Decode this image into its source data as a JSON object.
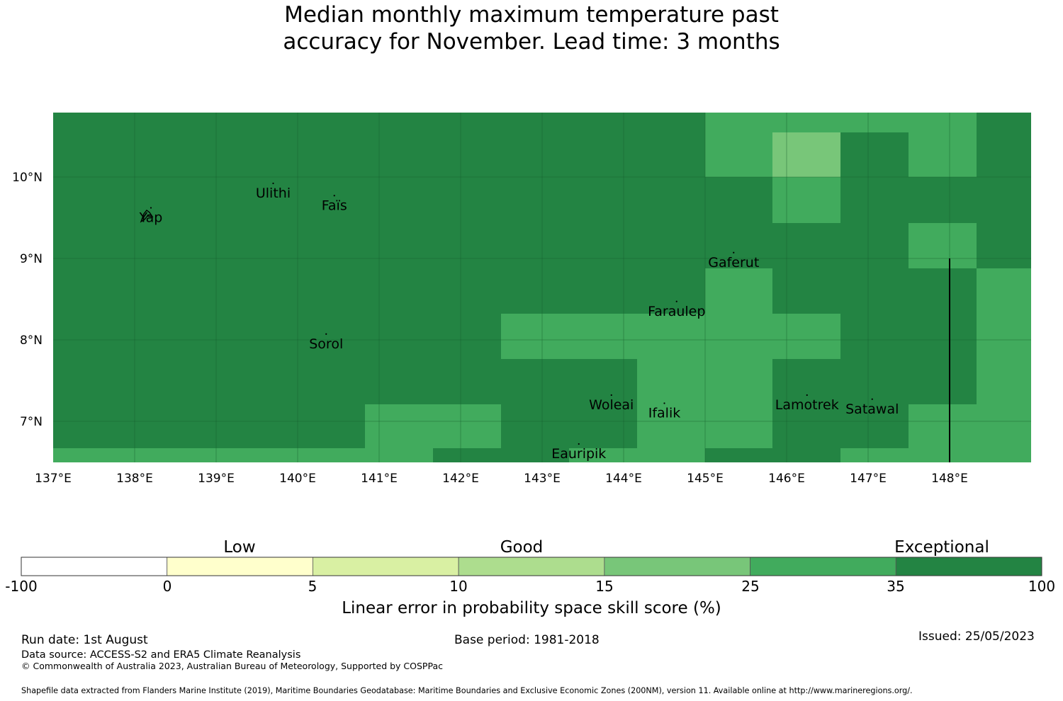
{
  "title_lines": [
    "Median monthly maximum temperature past",
    "accuracy for November. Lead time: 3 months"
  ],
  "map": {
    "lon_ticks": [
      "137°E",
      "138°E",
      "139°E",
      "140°E",
      "141°E",
      "142°E",
      "143°E",
      "144°E",
      "145°E",
      "146°E",
      "147°E",
      "148°E"
    ],
    "lat_ticks": [
      "10°N",
      "9°N",
      "8°N",
      "7°N"
    ],
    "places": [
      {
        "name": "Yap",
        "lon": 138.2,
        "lat": 9.5
      },
      {
        "name": "Ulithi",
        "lon": 139.7,
        "lat": 9.8
      },
      {
        "name": "Faïs",
        "lon": 140.45,
        "lat": 9.65
      },
      {
        "name": "Gaferut",
        "lon": 145.35,
        "lat": 8.95
      },
      {
        "name": "Faraulep",
        "lon": 144.65,
        "lat": 8.35
      },
      {
        "name": "Sorol",
        "lon": 140.35,
        "lat": 7.95
      },
      {
        "name": "Woleai",
        "lon": 143.85,
        "lat": 7.2
      },
      {
        "name": "Ifalik",
        "lon": 144.5,
        "lat": 7.1
      },
      {
        "name": "Lamotrek",
        "lon": 146.25,
        "lat": 7.2
      },
      {
        "name": "Satawal",
        "lon": 147.05,
        "lat": 7.15
      },
      {
        "name": "Eauripik",
        "lon": 143.45,
        "lat": 6.6
      }
    ]
  },
  "colorbar": {
    "category_labels": [
      {
        "label": "Low",
        "from": 0,
        "to": 5
      },
      {
        "label": "Good",
        "from": 10,
        "to": 15
      },
      {
        "label": "Exceptional",
        "from": 35,
        "to": 100
      }
    ],
    "bins": [
      {
        "from": "-100",
        "to": "0",
        "color": "#ffffff"
      },
      {
        "from": "0",
        "to": "5",
        "color": "#ffffcc"
      },
      {
        "from": "5",
        "to": "10",
        "color": "#d9f0a3"
      },
      {
        "from": "10",
        "to": "15",
        "color": "#addd8e"
      },
      {
        "from": "15",
        "to": "25",
        "color": "#78c679"
      },
      {
        "from": "25",
        "to": "35",
        "color": "#41ab5d"
      },
      {
        "from": "35",
        "to": "100",
        "color": "#238443"
      }
    ],
    "tick_labels": [
      "-100",
      "0",
      "5",
      "10",
      "15",
      "25",
      "35",
      "100"
    ],
    "axis_label": "Linear error in probability space skill score (%)"
  },
  "footer": {
    "run_date": "Run date: 1st August",
    "base_period": "Base period: 1981-2018",
    "issued": "Issued: 25/05/2023",
    "data_source": "Data source: ACCESS-S2 and ERA5 Climate Reanalysis",
    "copyright": "© Commonwealth of Australia 2023, Australian Bureau of Meteorology, Supported by COSPPac",
    "shapefile": "Shapefile data extracted from Flanders Marine Institute (2019), Maritime Boundaries Geodatabase: Maritime Boundaries and Exclusive Economic Zones (200NM), version 11. Available online at http://www.marineregions.org/."
  },
  "colors": {
    "exceptional_dark": "#238443",
    "exceptional_light": "#41ab5d",
    "good_high": "#78c679"
  }
}
